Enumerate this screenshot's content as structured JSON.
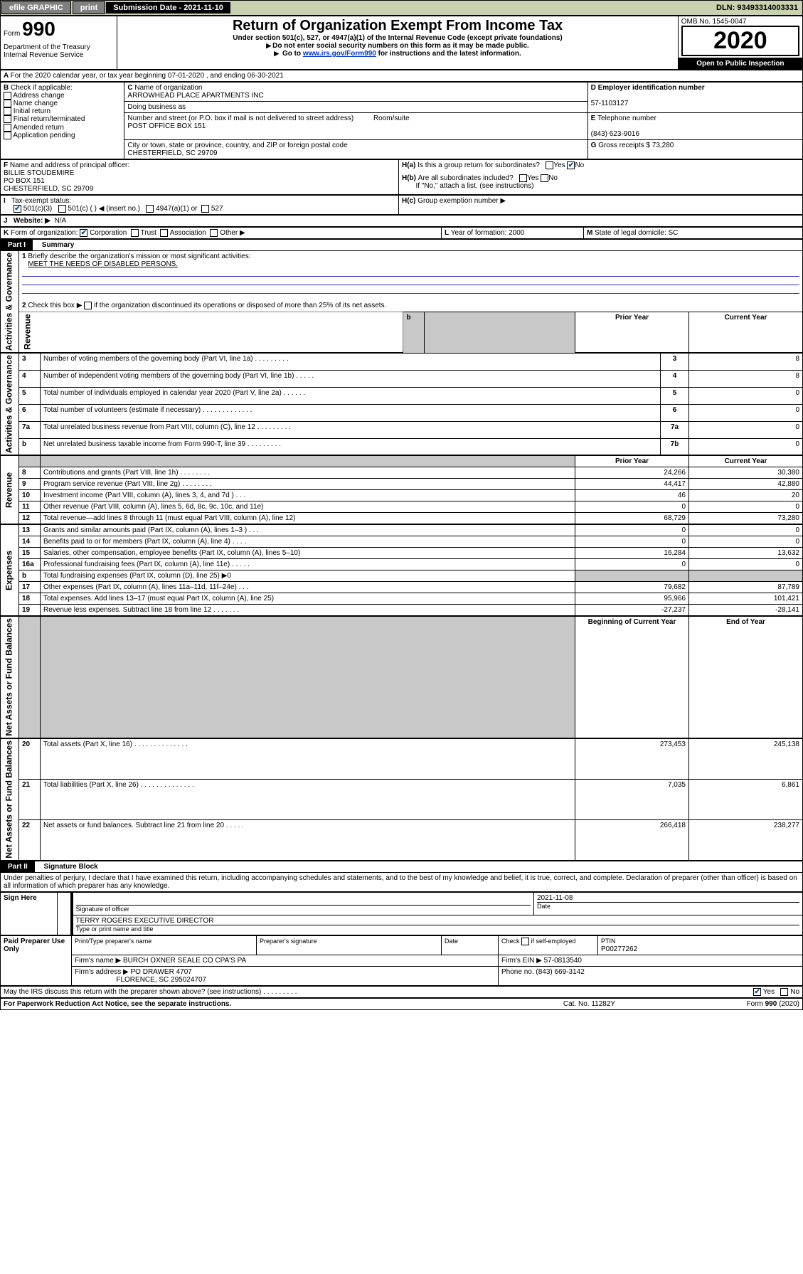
{
  "topbar": {
    "efile": "efile GRAPHIC",
    "print": "print",
    "subdate_label": "Submission Date - 2021-11-10",
    "dln": "DLN: 93493314003331"
  },
  "header": {
    "form_label": "Form",
    "form_no": "990",
    "dept": "Department of the Treasury\nInternal Revenue Service",
    "title": "Return of Organization Exempt From Income Tax",
    "subtitle1": "Under section 501(c), 527, or 4947(a)(1) of the Internal Revenue Code (except private foundations)",
    "subtitle2": "Do not enter social security numbers on this form as it may be made public.",
    "subtitle3_pre": "Go to ",
    "subtitle3_link": "www.irs.gov/Form990",
    "subtitle3_post": " for instructions and the latest information.",
    "omb": "OMB No. 1545-0047",
    "year": "2020",
    "inspection": "Open to Public Inspection"
  },
  "A": {
    "period": "For the 2020 calendar year, or tax year beginning 07-01-2020    , and ending 06-30-2021"
  },
  "B": {
    "label": "Check if applicable:",
    "items": [
      "Address change",
      "Name change",
      "Initial return",
      "Final return/terminated",
      "Amended return",
      "Application pending"
    ]
  },
  "C": {
    "name_label": "Name of organization",
    "name": "ARROWHEAD PLACE APARTMENTS INC",
    "dba_label": "Doing business as",
    "addr_label": "Number and street (or P.O. box if mail is not delivered to street address)",
    "room_label": "Room/suite",
    "addr": "POST OFFICE BOX 151",
    "city_label": "City or town, state or province, country, and ZIP or foreign postal code",
    "city": "CHESTERFIELD, SC  29709"
  },
  "D": {
    "label": "Employer identification number",
    "val": "57-1103127"
  },
  "E": {
    "label": "Telephone number",
    "val": "(843) 623-9016"
  },
  "G": {
    "label": "Gross receipts $",
    "val": "73,280"
  },
  "F": {
    "label": "Name and address of principal officer:",
    "name": "BILLIE STOUDEMIRE",
    "addr1": "PO BOX 151",
    "addr2": "CHESTERFIELD, SC  29709"
  },
  "H": {
    "a": "Is this a group return for subordinates?",
    "b": "Are all subordinates included?",
    "b_note": "If \"No,\" attach a list. (see instructions)",
    "c": "Group exemption number ▶"
  },
  "I": {
    "label": "Tax-exempt status:",
    "opts": [
      "501(c)(3)",
      "501(c) (  ) ◀ (insert no.)",
      "4947(a)(1) or",
      "527"
    ]
  },
  "J": {
    "label": "Website: ▶",
    "val": "N/A"
  },
  "K": {
    "label": "Form of organization:",
    "opts": [
      "Corporation",
      "Trust",
      "Association",
      "Other ▶"
    ]
  },
  "L": {
    "label": "Year of formation:",
    "val": "2000"
  },
  "M": {
    "label": "State of legal domicile:",
    "val": "SC"
  },
  "partI": {
    "label": "Part I",
    "title": "Summary",
    "q1": "Briefly describe the organization's mission or most significant activities:",
    "q1_ans": "MEET THE NEEDS OF DISABLED PERSONS.",
    "q2": "Check this box ▶        if the organization discontinued its operations or disposed of more than 25% of its net assets.",
    "rows": [
      {
        "n": "3",
        "t": "Number of voting members of the governing body (Part VI, line 1a)   .    .    .    .    .    .    .    .    .",
        "c": "3",
        "v": "8"
      },
      {
        "n": "4",
        "t": "Number of independent voting members of the governing body (Part VI, line 1b)   .    .    .    .    .",
        "c": "4",
        "v": "8"
      },
      {
        "n": "5",
        "t": "Total number of individuals employed in calendar year 2020 (Part V, line 2a)   .    .    .    .    .    .",
        "c": "5",
        "v": "0"
      },
      {
        "n": "6",
        "t": "Total number of volunteers (estimate if necessary)   .    .    .    .    .    .    .    .    .    .    .    .    .",
        "c": "6",
        "v": "0"
      },
      {
        "n": "7a",
        "t": "Total unrelated business revenue from Part VIII, column (C), line 12   .    .    .    .    .    .    .    .    .",
        "c": "7a",
        "v": "0"
      },
      {
        "n": "b",
        "t": "Net unrelated business taxable income from Form 990-T, line 39   .    .    .    .    .    .    .    .    .",
        "c": "7b",
        "v": "0"
      }
    ],
    "col_hdr_prior": "Prior Year",
    "col_hdr_curr": "Current Year",
    "rev": [
      {
        "n": "8",
        "t": "Contributions and grants (Part VIII, line 1h)   .    .    .    .    .    .    .    .",
        "p": "24,266",
        "c": "30,380"
      },
      {
        "n": "9",
        "t": "Program service revenue (Part VIII, line 2g)   .    .    .    .    .    .    .    .",
        "p": "44,417",
        "c": "42,880"
      },
      {
        "n": "10",
        "t": "Investment income (Part VIII, column (A), lines 3, 4, and 7d )   .    .    .",
        "p": "46",
        "c": "20"
      },
      {
        "n": "11",
        "t": "Other revenue (Part VIII, column (A), lines 5, 6d, 8c, 9c, 10c, and 11e)",
        "p": "0",
        "c": "0"
      },
      {
        "n": "12",
        "t": "Total revenue—add lines 8 through 11 (must equal Part VIII, column (A), line 12)",
        "p": "68,729",
        "c": "73,280"
      }
    ],
    "exp": [
      {
        "n": "13",
        "t": "Grants and similar amounts paid (Part IX, column (A), lines 1–3 )   .    .    .",
        "p": "0",
        "c": "0"
      },
      {
        "n": "14",
        "t": "Benefits paid to or for members (Part IX, column (A), line 4)   .    .    .    .",
        "p": "0",
        "c": "0"
      },
      {
        "n": "15",
        "t": "Salaries, other compensation, employee benefits (Part IX, column (A), lines 5–10)",
        "p": "16,284",
        "c": "13,632"
      },
      {
        "n": "16a",
        "t": "Professional fundraising fees (Part IX, column (A), line 11e)   .    .    .    .    .",
        "p": "0",
        "c": "0"
      },
      {
        "n": "b",
        "t": "Total fundraising expenses (Part IX, column (D), line 25) ▶0",
        "p": "",
        "c": ""
      },
      {
        "n": "17",
        "t": "Other expenses (Part IX, column (A), lines 11a–11d, 11f–24e)   .    .    .",
        "p": "79,682",
        "c": "87,789"
      },
      {
        "n": "18",
        "t": "Total expenses. Add lines 13–17 (must equal Part IX, column (A), line 25)",
        "p": "95,966",
        "c": "101,421"
      },
      {
        "n": "19",
        "t": "Revenue less expenses. Subtract line 18 from line 12  .    .    .    .    .    .    .",
        "p": "-27,237",
        "c": "-28,141"
      }
    ],
    "col_hdr_beg": "Beginning of Current Year",
    "col_hdr_end": "End of Year",
    "na": [
      {
        "n": "20",
        "t": "Total assets (Part X, line 16)   .    .    .    .    .    .    .    .    .    .    .    .    .    .",
        "p": "273,453",
        "c": "245,138"
      },
      {
        "n": "21",
        "t": "Total liabilities (Part X, line 26)  .    .    .    .    .    .    .    .    .    .    .    .    .    .",
        "p": "7,035",
        "c": "6,861"
      },
      {
        "n": "22",
        "t": "Net assets or fund balances. Subtract line 21 from line 20   .    .    .    .    .",
        "p": "266,418",
        "c": "238,277"
      }
    ],
    "side_gov": "Activities & Governance",
    "side_rev": "Revenue",
    "side_exp": "Expenses",
    "side_na": "Net Assets or Fund Balances"
  },
  "partII": {
    "label": "Part II",
    "title": "Signature Block",
    "perjury": "Under penalties of perjury, I declare that I have examined this return, including accompanying schedules and statements, and to the best of my knowledge and belief, it is true, correct, and complete. Declaration of preparer (other than officer) is based on all information of which preparer has any knowledge.",
    "sign_here": "Sign Here",
    "sig_officer": "Signature of officer",
    "date": "Date",
    "date_val": "2021-11-08",
    "name_title": "TERRY ROGERS  EXECUTIVE DIRECTOR",
    "name_title_lbl": "Type or print name and title",
    "paid": "Paid Preparer Use Only",
    "prep_name_lbl": "Print/Type preparer's name",
    "prep_sig_lbl": "Preparer's signature",
    "date_lbl": "Date",
    "self_emp": "Check         if self-employed",
    "ptin_lbl": "PTIN",
    "ptin": "P00277262",
    "firm_name_lbl": "Firm's name     ▶",
    "firm_name": "BURCH OXNER SEALE CO CPA'S PA",
    "firm_ein_lbl": "Firm's EIN ▶",
    "firm_ein": "57-0813540",
    "firm_addr_lbl": "Firm's address ▶",
    "firm_addr": "PO DRAWER 4707",
    "firm_city": "FLORENCE, SC  295024707",
    "phone_lbl": "Phone no.",
    "phone": "(843) 669-3142",
    "discuss": "May the IRS discuss this return with the preparer shown above? (see instructions)    .    .    .    .    .    .    .    .    .",
    "pra": "For Paperwork Reduction Act Notice, see the separate instructions.",
    "cat": "Cat. No. 11282Y",
    "formfoot": "Form 990 (2020)"
  },
  "colors": {
    "topbar_bg": "#c8d2b0",
    "link": "#0033cc",
    "check": "#0055aa"
  }
}
